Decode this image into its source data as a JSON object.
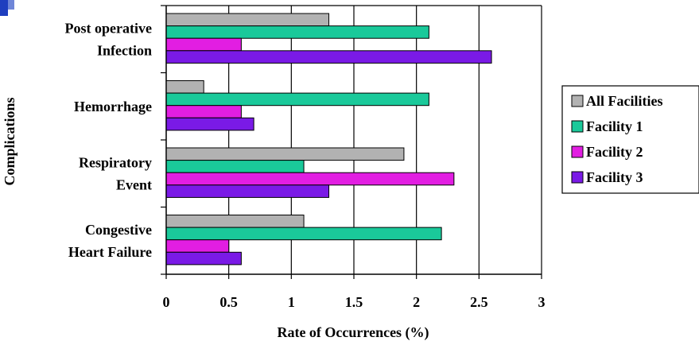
{
  "chart_data": {
    "type": "bar",
    "orientation": "horizontal",
    "categories": [
      [
        "Post operative",
        "Infection"
      ],
      [
        "Hemorrhage"
      ],
      [
        "Respiratory",
        "Event"
      ],
      [
        "Congestive",
        "Heart Failure"
      ]
    ],
    "series": [
      {
        "name": "All Facilities",
        "color": "#b2b2b2",
        "values": [
          1.3,
          0.3,
          1.9,
          1.1
        ]
      },
      {
        "name": "Facility 1",
        "color": "#1ac99a",
        "values": [
          2.1,
          2.1,
          1.1,
          2.2
        ]
      },
      {
        "name": "Facility 2",
        "color": "#e21ee2",
        "values": [
          0.6,
          0.6,
          2.3,
          0.5
        ]
      },
      {
        "name": "Facility 3",
        "color": "#7a1ae6",
        "values": [
          2.6,
          0.7,
          1.3,
          0.6
        ]
      }
    ],
    "xlabel": "Rate of Occurrences (%)",
    "ylabel": "Complications",
    "xlim": [
      0,
      3
    ],
    "xticks": [
      "0",
      "0.5",
      "1",
      "1.5",
      "2",
      "2.5",
      "3"
    ],
    "grid": true,
    "legend_position": "right"
  }
}
